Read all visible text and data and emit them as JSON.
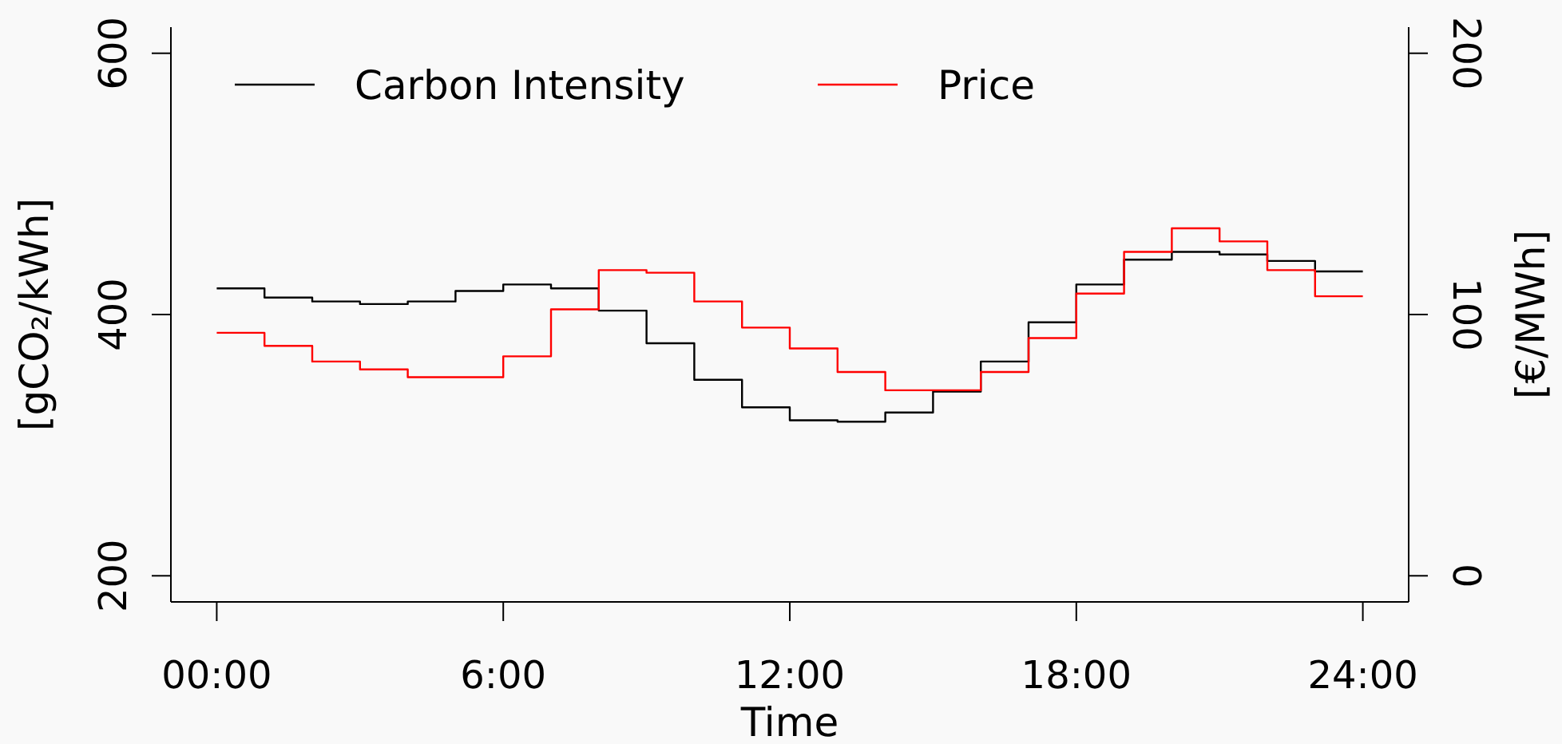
{
  "chart_data": {
    "type": "step",
    "xlabel": "Time",
    "ylabel": "[gCO₂/kWh]",
    "y2label": "[€/MWh]",
    "x": [
      0,
      1,
      2,
      3,
      4,
      5,
      6,
      7,
      8,
      9,
      10,
      11,
      12,
      13,
      14,
      15,
      16,
      17,
      18,
      19,
      20,
      21,
      22,
      23,
      24
    ],
    "xlim": [
      -0.96,
      24.96
    ],
    "xticks": [
      {
        "value": 0,
        "label": "00:00"
      },
      {
        "value": 6,
        "label": "6:00"
      },
      {
        "value": 12,
        "label": "12:00"
      },
      {
        "value": 18,
        "label": "18:00"
      },
      {
        "value": 24,
        "label": "24:00"
      }
    ],
    "ylim": [
      180,
      620
    ],
    "yticks": [
      200,
      400,
      600
    ],
    "y2lim": [
      -10,
      210
    ],
    "y2ticks": [
      0,
      100,
      200
    ],
    "legend": "top left",
    "grid": false,
    "series": [
      {
        "name": "Carbon Intensity",
        "color": "#000000",
        "values": [
          420,
          413,
          410,
          408,
          410,
          418,
          423,
          420,
          403,
          378,
          350,
          329,
          319,
          318,
          325,
          341,
          364,
          394,
          423,
          442,
          448,
          446,
          441,
          433,
          433
        ]
      },
      {
        "name": "Price",
        "color": "#ff0000",
        "axis": "y2",
        "values": [
          93,
          88,
          82,
          79,
          76,
          76,
          84,
          102,
          117,
          116,
          105,
          95,
          87,
          78,
          71,
          71,
          78,
          91,
          108,
          124,
          133,
          128,
          117,
          107,
          107
        ]
      }
    ]
  }
}
